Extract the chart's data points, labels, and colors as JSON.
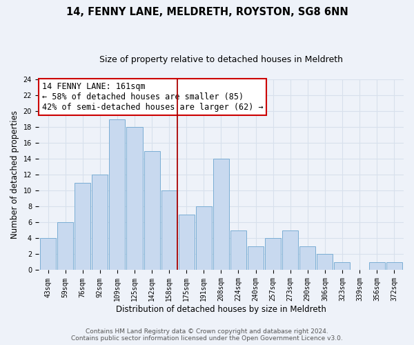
{
  "title": "14, FENNY LANE, MELDRETH, ROYSTON, SG8 6NN",
  "subtitle": "Size of property relative to detached houses in Meldreth",
  "xlabel": "Distribution of detached houses by size in Meldreth",
  "ylabel": "Number of detached properties",
  "bar_labels": [
    "43sqm",
    "59sqm",
    "76sqm",
    "92sqm",
    "109sqm",
    "125sqm",
    "142sqm",
    "158sqm",
    "175sqm",
    "191sqm",
    "208sqm",
    "224sqm",
    "240sqm",
    "257sqm",
    "273sqm",
    "290sqm",
    "306sqm",
    "323sqm",
    "339sqm",
    "356sqm",
    "372sqm"
  ],
  "bar_values": [
    4,
    6,
    11,
    12,
    19,
    18,
    15,
    10,
    7,
    8,
    14,
    5,
    3,
    4,
    5,
    3,
    2,
    1,
    0,
    1,
    1
  ],
  "bar_color": "#c8d9ef",
  "bar_edge_color": "#7aadd4",
  "highlight_index": 7,
  "highlight_line_color": "#aa0000",
  "annotation_title": "14 FENNY LANE: 161sqm",
  "annotation_line1": "← 58% of detached houses are smaller (85)",
  "annotation_line2": "42% of semi-detached houses are larger (62) →",
  "annotation_box_color": "#ffffff",
  "annotation_box_edge": "#cc0000",
  "ylim": [
    0,
    24
  ],
  "yticks": [
    0,
    2,
    4,
    6,
    8,
    10,
    12,
    14,
    16,
    18,
    20,
    22,
    24
  ],
  "footer_line1": "Contains HM Land Registry data © Crown copyright and database right 2024.",
  "footer_line2": "Contains public sector information licensed under the Open Government Licence v3.0.",
  "bg_color": "#eef2f9",
  "grid_color": "#d8e0ec",
  "title_fontsize": 10.5,
  "subtitle_fontsize": 9,
  "axis_label_fontsize": 8.5,
  "tick_fontsize": 7,
  "annotation_fontsize": 8.5,
  "footer_fontsize": 6.5
}
